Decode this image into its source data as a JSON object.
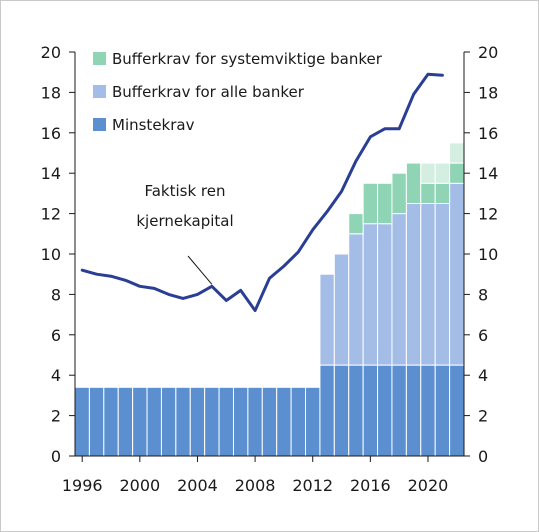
{
  "chart_data": {
    "type": "bar",
    "x": [
      1996,
      1997,
      1998,
      1999,
      2000,
      2001,
      2002,
      2003,
      2004,
      2005,
      2006,
      2007,
      2008,
      2009,
      2010,
      2011,
      2012,
      2013,
      2014,
      2015,
      2016,
      2017,
      2018,
      2019,
      2020,
      2021,
      2022
    ],
    "ylim": [
      0,
      20
    ],
    "y_ticks": [
      "0",
      "2",
      "4",
      "6",
      "8",
      "10",
      "12",
      "14",
      "16",
      "18",
      "20"
    ],
    "x_ticks": [
      "1996",
      "2000",
      "2004",
      "2008",
      "2012",
      "2016",
      "2020"
    ],
    "series": [
      {
        "name": "Minstekrav",
        "kind": "stacked-bar",
        "color": "#5b8fd0",
        "values": [
          3.4,
          3.4,
          3.4,
          3.4,
          3.4,
          3.4,
          3.4,
          3.4,
          3.4,
          3.4,
          3.4,
          3.4,
          3.4,
          3.4,
          3.4,
          3.4,
          3.4,
          4.5,
          4.5,
          4.5,
          4.5,
          4.5,
          4.5,
          4.5,
          4.5,
          4.5,
          4.5
        ]
      },
      {
        "name": "Bufferkrav for alle banker",
        "kind": "stacked-bar",
        "color": "#a4bde6",
        "values": [
          0,
          0,
          0,
          0,
          0,
          0,
          0,
          0,
          0,
          0,
          0,
          0,
          0,
          0,
          0,
          0,
          0,
          4.5,
          5.5,
          6.5,
          7.0,
          7.0,
          7.5,
          8.0,
          8.0,
          8.0,
          9.0
        ]
      },
      {
        "name": "Bufferkrav for systemviktige banker",
        "kind": "stacked-bar",
        "color": "#8fd4b4",
        "values": [
          0,
          0,
          0,
          0,
          0,
          0,
          0,
          0,
          0,
          0,
          0,
          0,
          0,
          0,
          0,
          0,
          0,
          0,
          0,
          1.0,
          2.0,
          2.0,
          2.0,
          2.0,
          1.0,
          1.0,
          1.0
        ],
        "light_extra": [
          0,
          0,
          0,
          0,
          0,
          0,
          0,
          0,
          0,
          0,
          0,
          0,
          0,
          0,
          0,
          0,
          0,
          0,
          0,
          0,
          0,
          0,
          0,
          0,
          1.0,
          1.0,
          1.0
        ],
        "light_color": "#d4efe2"
      },
      {
        "kind": "line",
        "color": "#2a3f93",
        "values": [
          9.2,
          9.0,
          8.9,
          8.7,
          8.4,
          8.3,
          8.0,
          7.8,
          8.0,
          8.4,
          7.7,
          8.2,
          7.2,
          8.8,
          9.4,
          10.1,
          11.2,
          12.1,
          13.1,
          14.6,
          15.8,
          16.2,
          16.2,
          17.9,
          18.9,
          18.85,
          null
        ]
      }
    ],
    "legend": [
      "Bufferkrav for systemviktige banker",
      "Bufferkrav for alle banker",
      "Minstekrav"
    ],
    "annotation": {
      "line1": "Faktisk ren",
      "line2": "kjernekapital",
      "points_to_year": 2005
    }
  }
}
